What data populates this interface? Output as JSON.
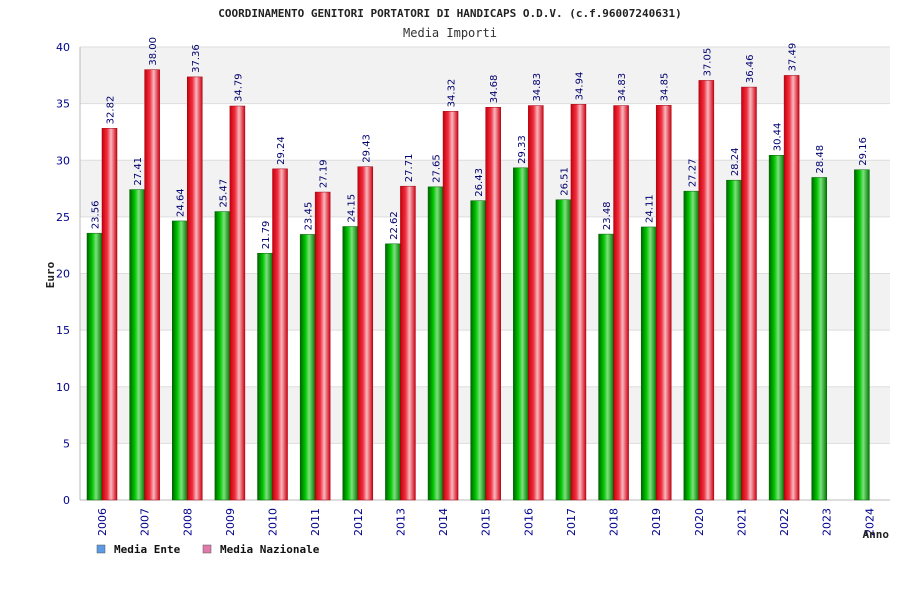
{
  "chart_data": {
    "type": "bar",
    "title": "COORDINAMENTO GENITORI PORTATORI DI HANDICAPS O.D.V. (c.f.96007240631)",
    "subtitle": "Media Importi",
    "ylabel": "Euro",
    "xlabel": "Anno",
    "ylim": [
      0,
      40
    ],
    "yticks": [
      0,
      5,
      10,
      15,
      20,
      25,
      30,
      35,
      40
    ],
    "grid": true,
    "legend_position": "bottom-left",
    "categories": [
      "2006",
      "2007",
      "2008",
      "2009",
      "2010",
      "2011",
      "2012",
      "2013",
      "2014",
      "2015",
      "2016",
      "2017",
      "2018",
      "2019",
      "2020",
      "2021",
      "2022",
      "2023",
      "2024"
    ],
    "series": [
      {
        "name": "Media Ente",
        "color": "#00a000",
        "values": [
          23.56,
          27.41,
          24.64,
          25.47,
          21.79,
          23.45,
          24.15,
          22.62,
          27.65,
          26.43,
          29.33,
          26.51,
          23.48,
          24.11,
          27.27,
          28.24,
          30.44,
          28.48,
          29.16
        ],
        "labels": [
          "23.56",
          "27.41",
          "24.64",
          "25.47",
          "21.79",
          "23.45",
          "24.15",
          "22.62",
          "27.65",
          "26.43",
          "29.33",
          "26.51",
          "23.48",
          "24.11",
          "27.27",
          "28.24",
          "30.44",
          "28.48",
          "29.16"
        ]
      },
      {
        "name": "Media Nazionale",
        "color": "#e8202a",
        "values": [
          32.82,
          38.0,
          37.36,
          34.79,
          29.24,
          27.19,
          29.43,
          27.71,
          34.32,
          34.68,
          34.83,
          34.94,
          34.83,
          34.85,
          37.05,
          36.46,
          37.49,
          null,
          null
        ],
        "labels": [
          "32.82",
          "38.00",
          "37.36",
          "34.79",
          "29.24",
          "27.19",
          "29.43",
          "27.71",
          "34.32",
          "34.68",
          "34.83",
          "34.94",
          "34.83",
          "34.85",
          "37.05",
          "36.46",
          "37.49",
          null,
          null
        ]
      }
    ],
    "legend": [
      {
        "label": "Media Ente",
        "swatch_color": "#5b9be6"
      },
      {
        "label": "Media Nazionale",
        "swatch_color": "#e07aa8"
      }
    ]
  }
}
